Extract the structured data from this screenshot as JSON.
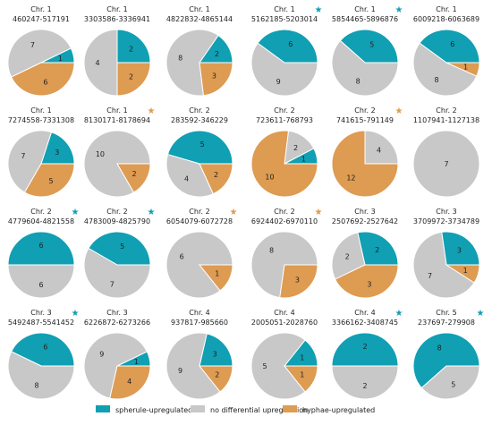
{
  "colors": {
    "spherule": "#109fb3",
    "none": "#c8c8c8",
    "hyphae": "#de9b52"
  },
  "legend": [
    {
      "key": "spherule",
      "label": "spherule-upregulated"
    },
    {
      "key": "none",
      "label": "no differential upregulation"
    },
    {
      "key": "hyphae",
      "label": "hyphae-upregulated"
    }
  ],
  "star_glyph": "★",
  "chart_data": {
    "type": "pie",
    "slice_order": [
      "spherule",
      "none",
      "hyphae"
    ],
    "pies": [
      {
        "chr": "Chr. 1",
        "range": "460247-517191",
        "values": [
          1,
          7,
          6
        ],
        "star": null
      },
      {
        "chr": "Chr. 1",
        "range": "3303586-3336941",
        "values": [
          2,
          4,
          2
        ],
        "star": null
      },
      {
        "chr": "Chr. 1",
        "range": "4822832-4865144",
        "values": [
          2,
          8,
          3
        ],
        "star": null
      },
      {
        "chr": "Chr. 1",
        "range": "5162185-5203014",
        "values": [
          6,
          9,
          0
        ],
        "star": "spherule"
      },
      {
        "chr": "Chr. 1",
        "range": "5854465-5896876",
        "values": [
          5,
          8,
          0
        ],
        "star": "spherule"
      },
      {
        "chr": "Chr. 1",
        "range": "6009218-6063689",
        "values": [
          6,
          8,
          1
        ],
        "star": null
      },
      {
        "chr": "Chr. 1",
        "range": "7274558-7331308",
        "values": [
          3,
          7,
          5
        ],
        "star": null
      },
      {
        "chr": "Chr. 1",
        "range": "8130171-8178694",
        "values": [
          0,
          10,
          2
        ],
        "star": "hyphae"
      },
      {
        "chr": "Chr. 2",
        "range": "283592-346229",
        "values": [
          5,
          4,
          2
        ],
        "star": null
      },
      {
        "chr": "Chr. 2",
        "range": "723611-768793",
        "values": [
          1,
          2,
          10
        ],
        "star": null
      },
      {
        "chr": "Chr. 2",
        "range": "741615-791149",
        "values": [
          0,
          4,
          12
        ],
        "star": "hyphae"
      },
      {
        "chr": "Chr. 2",
        "range": "1107941-1127138",
        "values": [
          0,
          7,
          0
        ],
        "star": null
      },
      {
        "chr": "Chr. 2",
        "range": "4779604-4821558",
        "values": [
          6,
          6,
          0
        ],
        "star": "spherule"
      },
      {
        "chr": "Chr. 2",
        "range": "4783009-4825790",
        "values": [
          5,
          7,
          0
        ],
        "star": "spherule"
      },
      {
        "chr": "Chr. 2",
        "range": "6054079-6072728",
        "values": [
          0,
          6,
          1
        ],
        "star": "hyphae"
      },
      {
        "chr": "Chr. 2",
        "range": "6924402-6970110",
        "values": [
          0,
          8,
          3
        ],
        "star": "hyphae"
      },
      {
        "chr": "Chr. 3",
        "range": "2507692-2527642",
        "values": [
          2,
          2,
          3
        ],
        "star": null
      },
      {
        "chr": "Chr. 3",
        "range": "3709972-3734789",
        "values": [
          3,
          7,
          1
        ],
        "star": null
      },
      {
        "chr": "Chr. 3",
        "range": "5492487-5541452",
        "values": [
          6,
          8,
          0
        ],
        "star": "spherule"
      },
      {
        "chr": "Chr. 3",
        "range": "6226872-6273266",
        "values": [
          1,
          9,
          4
        ],
        "star": null
      },
      {
        "chr": "Chr. 4",
        "range": "937817-985660",
        "values": [
          3,
          9,
          2
        ],
        "star": null
      },
      {
        "chr": "Chr. 4",
        "range": "2005051-2028760",
        "values": [
          1,
          5,
          1
        ],
        "star": null
      },
      {
        "chr": "Chr. 4",
        "range": "3366162-3408745",
        "values": [
          2,
          2,
          0
        ],
        "star": "spherule"
      },
      {
        "chr": "Chr. 5",
        "range": "237697-279908",
        "values": [
          8,
          5,
          0
        ],
        "star": "spherule"
      }
    ]
  }
}
